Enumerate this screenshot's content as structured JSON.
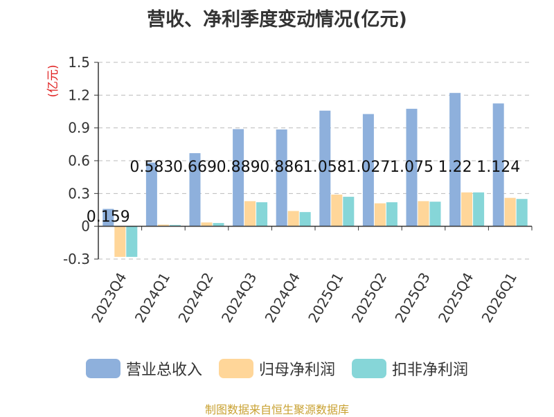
{
  "title": "营收、净利季度变动情况(亿元)",
  "footer": "制图数据来自恒生聚源数据库",
  "chart_data": {
    "type": "bar",
    "title": "营收、净利季度变动情况(亿元)",
    "ylabel": "(亿元)",
    "xlabel": "",
    "ylim": [
      -0.3,
      1.5
    ],
    "yticks": [
      "-0.3",
      "0",
      "0.3",
      "0.6",
      "0.9",
      "1.2",
      "1.5"
    ],
    "grid": true,
    "legend_position": "bottom",
    "categories": [
      "2023Q4",
      "2024Q1",
      "2024Q2",
      "2024Q3",
      "2024Q4",
      "2025Q1",
      "2025Q2",
      "2025Q3",
      "2025Q4",
      "2026Q1"
    ],
    "series": [
      {
        "name": "营业总收入",
        "color": "#8eb0dc",
        "values": [
          0.159,
          0.583,
          0.669,
          0.889,
          0.886,
          1.058,
          1.027,
          1.075,
          1.22,
          1.124
        ],
        "labels": [
          "0.159",
          "0.583",
          "0.669",
          "0.889",
          "0.886",
          "1.058",
          "1.027",
          "1.075",
          "1.22",
          "1.124"
        ]
      },
      {
        "name": "归母净利润",
        "color": "#ffd699",
        "values": [
          -0.28,
          0.015,
          0.035,
          0.23,
          0.14,
          0.29,
          0.21,
          0.23,
          0.31,
          0.26
        ]
      },
      {
        "name": "扣非净利润",
        "color": "#86d6d8",
        "values": [
          -0.28,
          0.012,
          0.03,
          0.22,
          0.13,
          0.27,
          0.22,
          0.225,
          0.31,
          0.25
        ]
      }
    ]
  }
}
